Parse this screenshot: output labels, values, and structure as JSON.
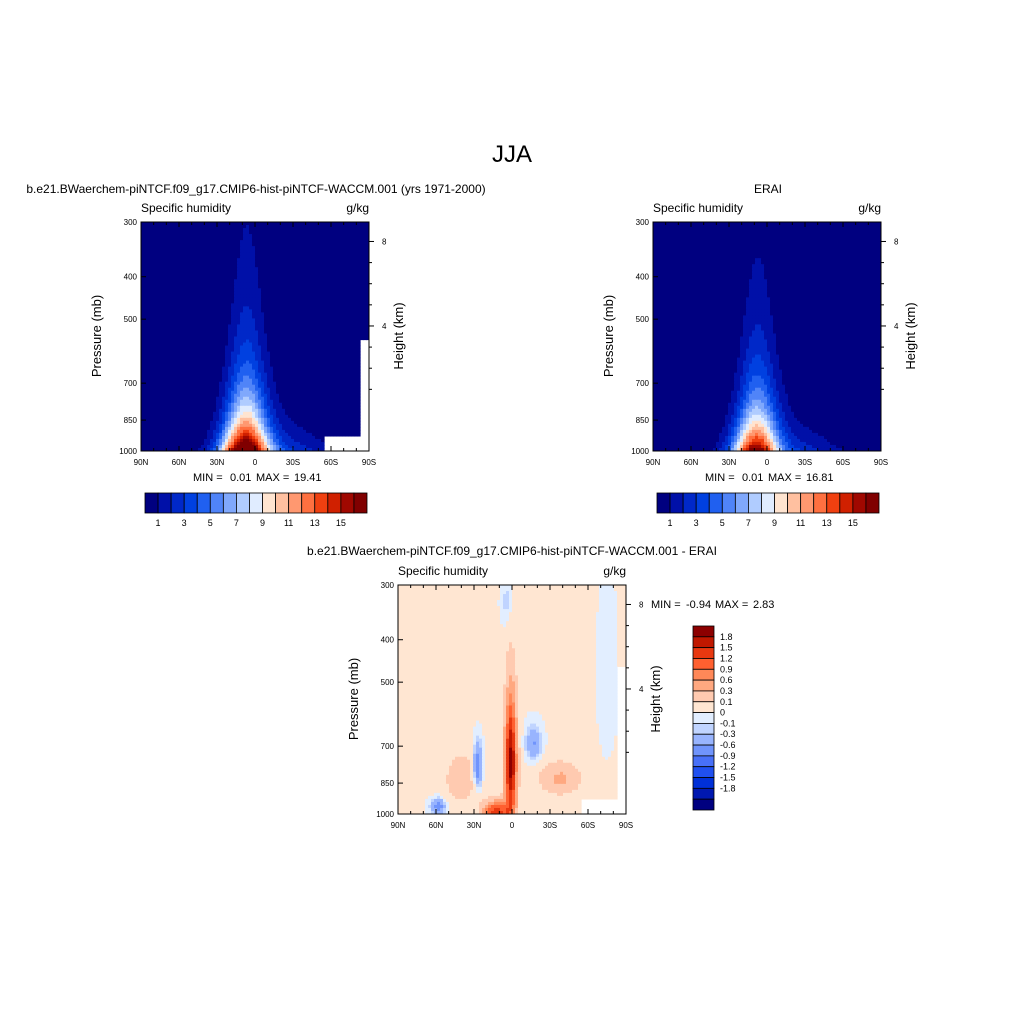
{
  "page": {
    "title": "JJA"
  },
  "colors": {
    "abs_levels": [
      "#000080",
      "#0010a8",
      "#0028c8",
      "#0040e0",
      "#2060f0",
      "#5084f8",
      "#80a8fc",
      "#b0ccff",
      "#e0ecff",
      "#ffe4d0",
      "#ffc0a0",
      "#ff9870",
      "#ff7040",
      "#f04010",
      "#d02000",
      "#a00800",
      "#800000"
    ],
    "diff_levels": [
      "#000080",
      "#0018b0",
      "#0030d8",
      "#2050f0",
      "#4870f8",
      "#7094fc",
      "#98b4fe",
      "#c0d4ff",
      "#e2eeff",
      "#ffe6d2",
      "#ffcab0",
      "#ffa880",
      "#ff8858",
      "#ff6030",
      "#e83810",
      "#c01800",
      "#8c0000"
    ]
  },
  "chart_data": [
    {
      "type": "heatmap",
      "title": "b.e21.BWaerchem-piNTCF.f09_g17.CMIP6-hist-piNTCF-WACCM.001 (yrs 1971-2000)",
      "left_label": "Specific humidity",
      "right_label": "g/kg",
      "ylabel": "Pressure (mb)",
      "ylabel_right": "Height (km)",
      "x_ticks": [
        "90N",
        "60N",
        "30N",
        "0",
        "30S",
        "60S",
        "90S"
      ],
      "y_ticks": [
        "300",
        "400",
        "500",
        "700",
        "850",
        "1000"
      ],
      "y_right_ticks": [
        "8",
        "4"
      ],
      "min_label": "MIN = ",
      "min_value": "0.01",
      "max_label": "MAX = ",
      "max_value": "19.41",
      "colorbar": {
        "orientation": "horizontal",
        "levels": [
          1,
          2,
          3,
          4,
          5,
          6,
          7,
          8,
          9,
          10,
          11,
          12,
          13,
          14,
          15
        ],
        "labels": [
          "1",
          "3",
          "5",
          "7",
          "9",
          "11",
          "13",
          "15"
        ]
      }
    },
    {
      "type": "heatmap",
      "title": "ERAI",
      "left_label": "Specific humidity",
      "right_label": "g/kg",
      "ylabel": "Pressure (mb)",
      "ylabel_right": "Height (km)",
      "x_ticks": [
        "90N",
        "60N",
        "30N",
        "0",
        "30S",
        "60S",
        "90S"
      ],
      "y_ticks": [
        "300",
        "400",
        "500",
        "700",
        "850",
        "1000"
      ],
      "y_right_ticks": [
        "8",
        "4"
      ],
      "min_label": "MIN = ",
      "min_value": "0.01",
      "max_label": "MAX = ",
      "max_value": "16.81",
      "colorbar": {
        "orientation": "horizontal",
        "levels": [
          1,
          2,
          3,
          4,
          5,
          6,
          7,
          8,
          9,
          10,
          11,
          12,
          13,
          14,
          15
        ],
        "labels": [
          "1",
          "3",
          "5",
          "7",
          "9",
          "11",
          "13",
          "15"
        ]
      }
    },
    {
      "type": "heatmap",
      "title": "b.e21.BWaerchem-piNTCF.f09_g17.CMIP6-hist-piNTCF-WACCM.001 - ERAI",
      "left_label": "Specific humidity",
      "right_label": "g/kg",
      "ylabel": "Pressure (mb)",
      "ylabel_right": "Height (km)",
      "x_ticks": [
        "90N",
        "60N",
        "30N",
        "0",
        "30S",
        "60S",
        "90S"
      ],
      "y_ticks": [
        "300",
        "400",
        "500",
        "700",
        "850",
        "1000"
      ],
      "y_right_ticks": [
        "8",
        "4"
      ],
      "min_label": "MIN = ",
      "min_value": "-0.94",
      "max_label": "MAX = ",
      "max_value": "2.83",
      "colorbar": {
        "orientation": "vertical",
        "labels": [
          "1.8",
          "1.5",
          "1.2",
          "0.9",
          "0.6",
          "0.3",
          "0.1",
          "0",
          "-0.1",
          "-0.3",
          "-0.6",
          "-0.9",
          "-1.2",
          "-1.5",
          "-1.8"
        ]
      }
    }
  ]
}
